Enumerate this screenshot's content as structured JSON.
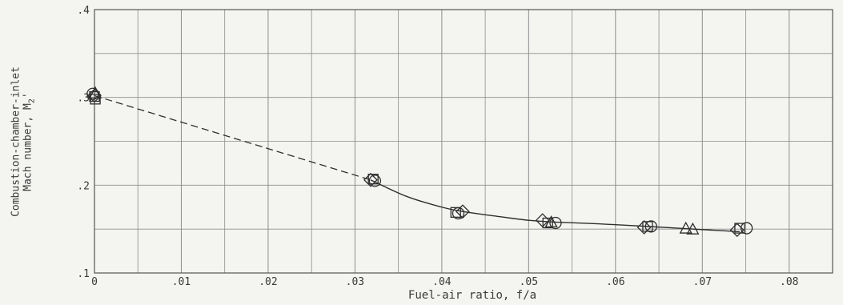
{
  "chart_data": {
    "type": "scatter",
    "xlabel": "Fuel-air ratio, f/a",
    "ylabel_line1": "Combustion-chamber-inlet",
    "ylabel_line2": "Mach number, M",
    "ylabel_subscript": "2",
    "ylabel_prime": "'",
    "xlim": [
      0,
      0.085
    ],
    "ylim": [
      0.1,
      0.4
    ],
    "x_ticks": [
      0,
      0.01,
      0.02,
      0.03,
      0.04,
      0.05,
      0.06,
      0.07,
      0.08
    ],
    "x_tick_labels": [
      "0",
      ".01",
      ".02",
      ".03",
      ".04",
      ".05",
      ".06",
      ".07",
      ".08"
    ],
    "y_ticks": [
      0.1,
      0.2,
      0.3,
      0.4
    ],
    "y_tick_labels": [
      ".1",
      ".2",
      ".3",
      ".4"
    ],
    "grid": true,
    "points": [
      {
        "x": -0.0002,
        "y": 0.304,
        "marker": "circle"
      },
      {
        "x": 0.0,
        "y": 0.301,
        "marker": "square"
      },
      {
        "x": 0.0001,
        "y": 0.298,
        "marker": "square"
      },
      {
        "x": 0.0,
        "y": 0.302,
        "marker": "diamond"
      },
      {
        "x": 0.0001,
        "y": 0.305,
        "marker": "triangle"
      },
      {
        "x": 0.0318,
        "y": 0.206,
        "marker": "diamond"
      },
      {
        "x": 0.0321,
        "y": 0.207,
        "marker": "square"
      },
      {
        "x": 0.0323,
        "y": 0.205,
        "marker": "circle"
      },
      {
        "x": 0.0416,
        "y": 0.169,
        "marker": "square"
      },
      {
        "x": 0.0419,
        "y": 0.168,
        "marker": "circle"
      },
      {
        "x": 0.0424,
        "y": 0.17,
        "marker": "diamond"
      },
      {
        "x": 0.0516,
        "y": 0.16,
        "marker": "diamond"
      },
      {
        "x": 0.0522,
        "y": 0.157,
        "marker": "square"
      },
      {
        "x": 0.0526,
        "y": 0.158,
        "marker": "triangle"
      },
      {
        "x": 0.0531,
        "y": 0.157,
        "marker": "circle"
      },
      {
        "x": 0.0633,
        "y": 0.152,
        "marker": "diamond"
      },
      {
        "x": 0.0637,
        "y": 0.153,
        "marker": "square"
      },
      {
        "x": 0.0641,
        "y": 0.153,
        "marker": "circle"
      },
      {
        "x": 0.0681,
        "y": 0.151,
        "marker": "triangle"
      },
      {
        "x": 0.0689,
        "y": 0.15,
        "marker": "triangle"
      },
      {
        "x": 0.074,
        "y": 0.149,
        "marker": "diamond"
      },
      {
        "x": 0.0743,
        "y": 0.151,
        "marker": "square"
      },
      {
        "x": 0.0751,
        "y": 0.151,
        "marker": "circle"
      }
    ],
    "curve_dashed": [
      [
        0.0,
        0.302
      ],
      [
        0.0318,
        0.206
      ]
    ],
    "curve_solid": [
      [
        0.0318,
        0.206
      ],
      [
        0.036,
        0.187
      ],
      [
        0.04,
        0.175
      ],
      [
        0.0424,
        0.17
      ],
      [
        0.046,
        0.165
      ],
      [
        0.05,
        0.16
      ],
      [
        0.053,
        0.158
      ],
      [
        0.058,
        0.156
      ],
      [
        0.0637,
        0.153
      ],
      [
        0.069,
        0.15
      ],
      [
        0.0743,
        0.147
      ]
    ],
    "colors": {
      "line": "#2e2e2e",
      "grid": "#8d8d8d",
      "background": "#f4f4f1"
    }
  }
}
